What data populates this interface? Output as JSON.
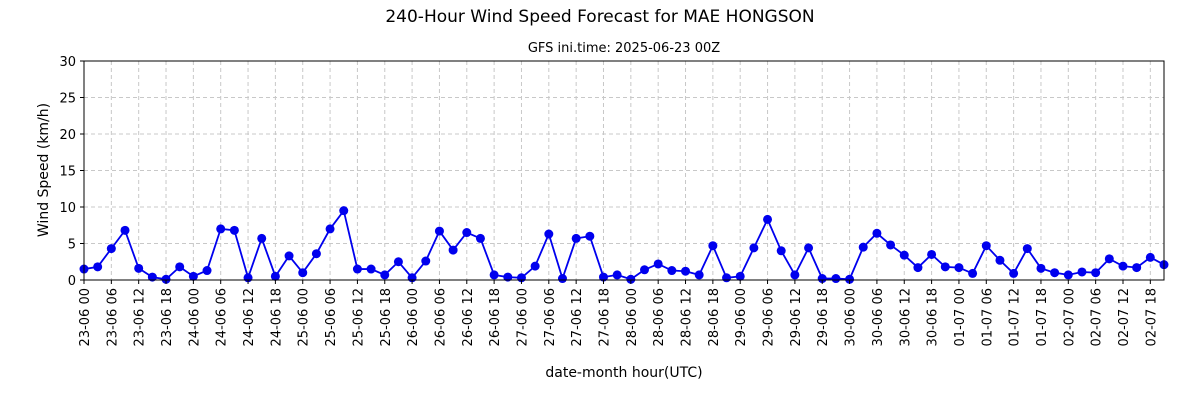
{
  "chart_data": {
    "type": "line",
    "title": "240-Hour Wind Speed Forecast for MAE HONGSON",
    "subtitle": "GFS ini.time: 2025-06-23 00Z",
    "xlabel": "date-month hour(UTC)",
    "ylabel": "Wind Speed (km/h)",
    "ylim": [
      0,
      30
    ],
    "yticks": [
      0,
      5,
      10,
      15,
      20,
      25,
      30
    ],
    "grid": true,
    "x_tick_labels": [
      "23-06 00",
      "23-06 06",
      "23-06 12",
      "23-06 18",
      "24-06 00",
      "24-06 06",
      "24-06 12",
      "24-06 18",
      "25-06 00",
      "25-06 06",
      "25-06 12",
      "25-06 18",
      "26-06 00",
      "26-06 06",
      "26-06 12",
      "26-06 18",
      "27-06 00",
      "27-06 06",
      "27-06 12",
      "27-06 18",
      "28-06 00",
      "28-06 06",
      "28-06 12",
      "28-06 18",
      "29-06 00",
      "29-06 06",
      "29-06 12",
      "29-06 18",
      "30-06 00",
      "30-06 06",
      "30-06 12",
      "30-06 18",
      "01-07 00",
      "01-07 06",
      "01-07 12",
      "01-07 18",
      "02-07 00",
      "02-07 06",
      "02-07 12",
      "02-07 18"
    ],
    "x_step_hours": 3,
    "colors": {
      "series": "#0000ee",
      "grid": "#c8c8c8"
    },
    "values": [
      1.5,
      1.8,
      4.3,
      6.8,
      1.6,
      0.4,
      0.1,
      1.8,
      0.5,
      1.3,
      7.0,
      6.8,
      0.3,
      5.7,
      0.5,
      3.3,
      1.0,
      3.6,
      7.0,
      9.5,
      1.5,
      1.5,
      0.7,
      2.5,
      0.3,
      2.6,
      6.7,
      4.1,
      6.5,
      5.7,
      0.7,
      0.4,
      0.3,
      1.9,
      6.3,
      0.2,
      5.7,
      6.0,
      0.4,
      0.7,
      0.1,
      1.4,
      2.2,
      1.3,
      1.2,
      0.7,
      4.7,
      0.3,
      0.5,
      4.4,
      8.3,
      4.0,
      0.7,
      4.4,
      0.2,
      0.2,
      0.1,
      4.5,
      6.4,
      4.8,
      3.4,
      1.7,
      3.5,
      1.8,
      1.7,
      0.9,
      4.7,
      2.7,
      0.9,
      4.3,
      1.6,
      1.0,
      0.7,
      1.1,
      1.0,
      2.9,
      1.9,
      1.7,
      3.1,
      2.1
    ]
  }
}
